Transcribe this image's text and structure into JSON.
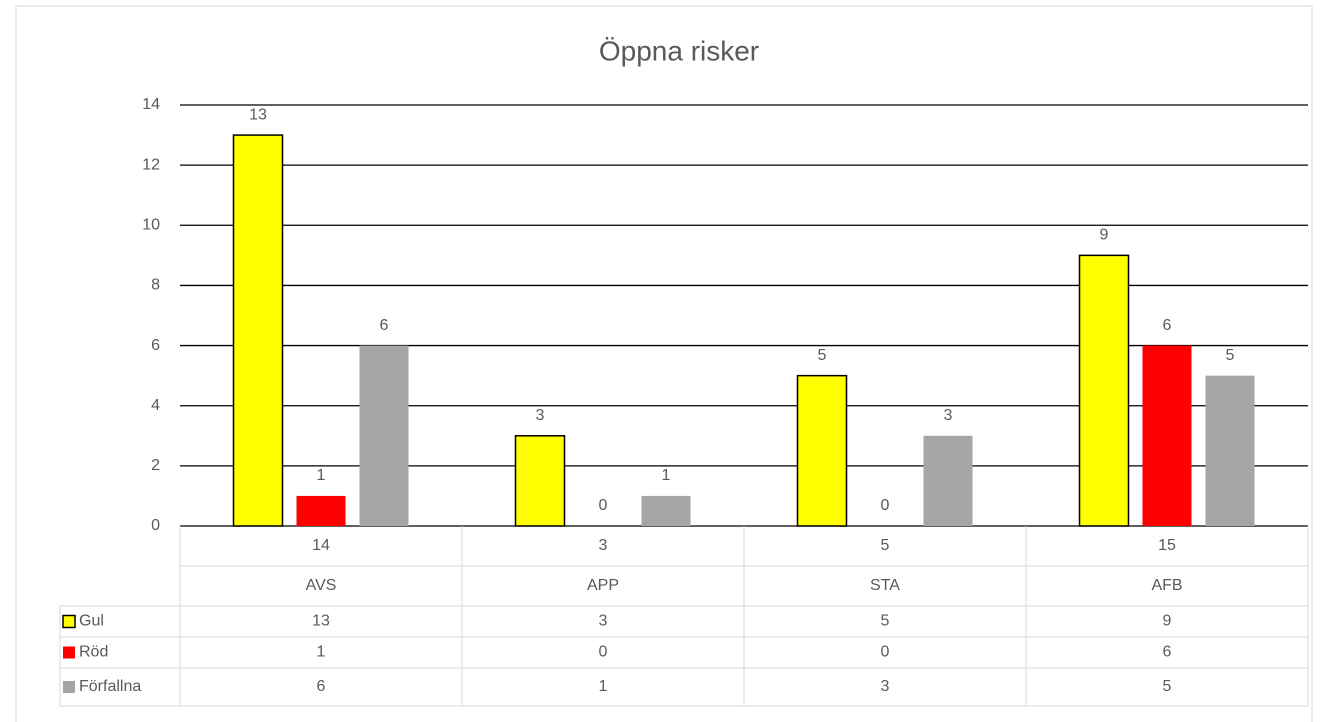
{
  "chart_data": {
    "type": "bar",
    "title": "Öppna risker",
    "categories": [
      "AVS",
      "APP",
      "STA",
      "AFB"
    ],
    "totals": [
      14,
      3,
      5,
      15
    ],
    "series": [
      {
        "name": "Gul",
        "color": "#ffff00",
        "values": [
          13,
          3,
          5,
          9
        ]
      },
      {
        "name": "Röd",
        "color": "#ff0000",
        "values": [
          1,
          0,
          0,
          6
        ]
      },
      {
        "name": "Förfallna",
        "color": "#a5a5a5",
        "values": [
          6,
          1,
          3,
          5
        ]
      }
    ],
    "ylim": [
      0,
      14
    ],
    "yticks": [
      0,
      2,
      4,
      6,
      8,
      10,
      12,
      14
    ],
    "grid": true,
    "data_table": true
  }
}
